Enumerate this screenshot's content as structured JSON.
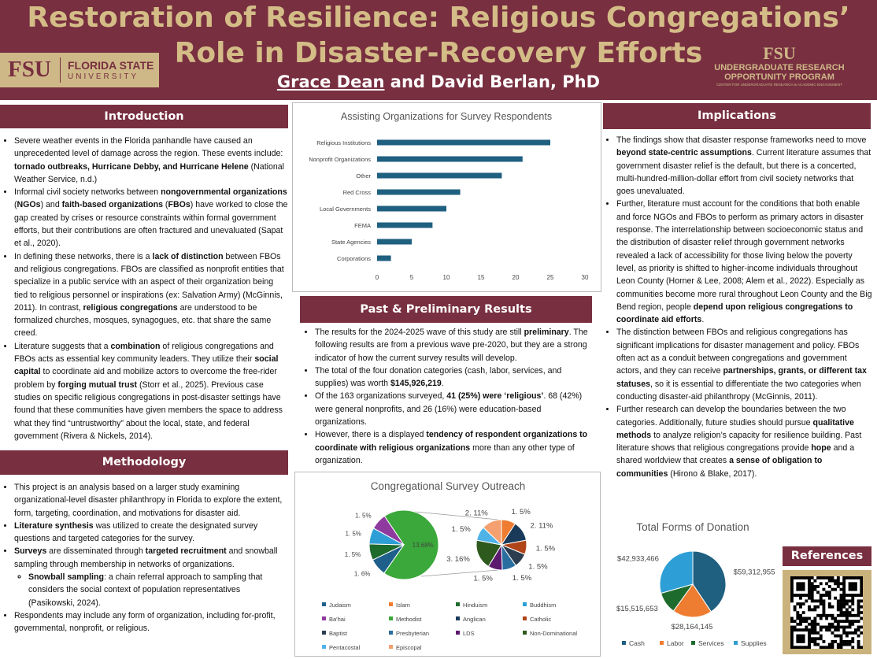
{
  "header": {
    "title": [
      "Restoration of Resilience: Religious Congregations’",
      "Role in Disaster-Recovery Efforts"
    ],
    "author": "Grace Dean",
    "coauthors": "and David Berlan, PhD",
    "logo_left": {
      "mark": "FSU",
      "name": "FLORIDA STATE",
      "sub": "UNIVERSITY"
    },
    "logo_right": {
      "mark": "FSU",
      "line1": "UNDERGRADUATE RESEARCH",
      "line2": "OPPORTUNITY PROGRAM",
      "line3": "CENTER FOR UNDERGRADUATE RESEARCH & ACADEMIC ENGAGEMENT"
    }
  },
  "introduction": {
    "heading": "Introduction",
    "bullets": [
      {
        "runs": [
          "Severe weather events in the Florida panhandle have caused an unprecedented level of damage across the region. These events include: ",
          {
            "bold": "tornado outbreaks, Hurricane Debby, and Hurricane Helene"
          },
          " (National Weather Service, n.d.)"
        ]
      },
      {
        "runs": [
          "Informal civil society networks between ",
          {
            "bold": "nongovernmental organizations"
          },
          " (",
          {
            "bold": "NGOs"
          },
          ") and ",
          {
            "bold": "faith-based organizations"
          },
          " (",
          {
            "bold": "FBOs"
          },
          ") have worked to close the gap created by crises or resource constraints within formal government efforts, but their contributions are often fractured and unevaluated (Sapat et al., 2020)."
        ]
      },
      {
        "runs": [
          "In defining these networks, there is a ",
          {
            "bold": "lack of distinction"
          },
          " between FBOs and religious congregations. FBOs are classified as nonprofit entities that specialize in a public service with an aspect of their organization being tied to religious personnel or inspirations (ex: Salvation Army) (McGinnis, 2011). In contrast, ",
          {
            "bold": "religious congregations"
          },
          " are understood to be formalized churches, mosques, synagogues, etc. that share the same creed."
        ]
      },
      {
        "runs": [
          "Literature suggests that a ",
          {
            "bold": "combination"
          },
          " of religious congregations and FBOs acts as essential key community leaders. They utilize their ",
          {
            "bold": "social capital"
          },
          " to coordinate aid and mobilize actors to overcome the free-rider problem by ",
          {
            "bold": "forging mutual trust"
          },
          " (Storr et al., 2025). Previous case studies on specific religious congregations in post-disaster settings have found that these communities have given members the space to address what they find “untrustworthy” about the local, state, and federal government (Rivera & Nickels, 2014)."
        ]
      }
    ]
  },
  "methodology": {
    "heading": "Methodology",
    "bullets": [
      {
        "runs": [
          "This project is an analysis based on a larger study examining organizational-level disaster philanthropy in Florida to explore the extent, form, targeting, coordination, and motivations for disaster aid."
        ]
      },
      {
        "runs": [
          {
            "bold": "Literature synthesis"
          },
          " was utilized to create the designated survey questions and targeted categories for the survey."
        ]
      },
      {
        "runs": [
          {
            "bold": "Surveys"
          },
          " are disseminated through ",
          {
            "bold": "targeted recruitment"
          },
          " and snowball sampling through membership in networks of organizations."
        ],
        "sub": [
          [
            {
              "bold": "Snowball sampling"
            },
            ": a chain referral approach to sampling that considers the social context of population representatives (Pasikowski, 2024)."
          ]
        ]
      },
      {
        "runs": [
          "Respondents may include any form of organization, including for-profit, governmental, nonprofit, or religious."
        ]
      }
    ]
  },
  "results": {
    "heading": "Past & Preliminary Results",
    "bullets": [
      {
        "runs": [
          "The results for the 2024-2025 wave of this study are still ",
          {
            "bold": "preliminary"
          },
          ". The following results are from a previous wave pre-2020, but they are a strong indicator of how the current survey results will develop."
        ]
      },
      {
        "runs": [
          "The total of the four donation categories (cash, labor, services, and supplies) was worth ",
          {
            "bold": "$145,926,219"
          },
          "."
        ]
      },
      {
        "runs": [
          "Of the 163 organizations surveyed, ",
          {
            "bold": "41 (25%) were ‘religious’"
          },
          ". 68 (42%) were general nonprofits, and 26 (16%) were education-based organizations."
        ]
      },
      {
        "runs": [
          "However, there is a displayed ",
          {
            "bold": "tendency of respondent organizations to coordinate with religious organizations"
          },
          " more than any other type of organization."
        ]
      }
    ]
  },
  "implications": {
    "heading": "Implications",
    "bullets": [
      {
        "runs": [
          "The findings show that disaster response frameworks need to move ",
          {
            "bold": "beyond state-centric assumptions"
          },
          ". Current literature assumes that government disaster relief is the default, but there is a concerted, multi-hundred-million-dollar effort from civil society networks that goes unevaluated."
        ]
      },
      {
        "runs": [
          "Further, literature must account for the conditions that both enable and force NGOs and FBOs to perform as primary actors in disaster response. The interrelationship between socioeconomic status and the distribution of disaster relief through government networks revealed a lack of accessibility for those living below the poverty level, as priority is shifted to higher-income individuals throughout Leon County (Horner & Lee, 2008; Alem et al., 2022). Especially as communities become more rural throughout Leon County and the Big Bend region, people ",
          {
            "bold": "depend upon religious congregations to coordinate aid efforts"
          },
          "."
        ]
      },
      {
        "runs": [
          "The distinction between FBOs and religious congregations has significant implications for disaster management and policy. FBOs often act as a conduit between congregations and government actors, and they can receive ",
          {
            "bold": "partnerships, grants, or different tax statuses"
          },
          ", so it is essential to differentiate the two categories when conducting disaster-aid philanthropy (McGinnis, 2011)."
        ]
      },
      {
        "runs": [
          "Further research can develop the boundaries between the two categories. Additionally, future studies should pursue ",
          {
            "bold": "qualitative methods"
          },
          " to analyze religion’s capacity for resilience building. Past literature shows that religious congregations provide ",
          {
            "bold": "hope"
          },
          " and a shared worldview that creates ",
          {
            "bold": "a sense of obligation to communities"
          },
          " (Hirono & Blake, 2017)."
        ]
      }
    ]
  },
  "references": {
    "heading": "References"
  },
  "chart_data": [
    {
      "type": "bar",
      "orientation": "horizontal",
      "title": "Assisting Organizations for Survey Respondents",
      "categories": [
        "Religious Institutions",
        "Nonprofit Organizations",
        "Other",
        "Red Cross",
        "Local Governments",
        "FEMA",
        "State Agencies",
        "Corporations"
      ],
      "values": [
        25,
        21,
        18,
        12,
        10,
        8,
        5,
        2
      ],
      "color": "#1f5f80",
      "grid": false,
      "xlim": [
        0,
        30
      ],
      "xticks": [
        0,
        5,
        10,
        15,
        20,
        25,
        30
      ]
    },
    {
      "type": "pie_of_pie",
      "title": "Congregational Survey Outreach",
      "categories": [
        "Judaism",
        "Islam",
        "Hinduism",
        "Buddhism",
        "Ba'hai",
        "Methodist",
        "Anglican",
        "Catholic",
        "Baptist",
        "Presbyterian",
        "LDS",
        "Non-Dominational",
        "Pentacostal",
        "Episcopal"
      ],
      "values": [
        1.6,
        1.5,
        1.5,
        1.5,
        1.5,
        13.68,
        2.11,
        1.5,
        1.5,
        1.5,
        1.5,
        3.16,
        1.5,
        2.11
      ],
      "value_labels": [
        "1. 6%",
        "1. 5%",
        "1. 5%",
        "1. 5%",
        "1. 5%",
        "13.68%",
        "2. 11%",
        "1. 5%",
        "1. 5%",
        "1. 5%",
        "1. 5%",
        "3. 16%",
        "1. 5%",
        "2. 11%"
      ],
      "colors": [
        "#1f5f8b",
        "#ee7d31",
        "#1e6b2e",
        "#2e9fd6",
        "#8e3a9e",
        "#3aa83a",
        "#1a3a5a",
        "#b0451a",
        "#2b3e50",
        "#2a6ea0",
        "#5c1a6e",
        "#2f5a1e",
        "#4fb3e8",
        "#f4a070"
      ],
      "secondary_categories": [
        "Islam",
        "Anglican",
        "Catholic",
        "Baptist",
        "Presbyterian",
        "LDS",
        "Non-Dominational",
        "Pentacostal",
        "Episcopal"
      ],
      "legend": "bottom"
    },
    {
      "type": "pie",
      "title": "Total Forms of Donation",
      "categories": [
        "Cash",
        "Labor",
        "Services",
        "Supplies"
      ],
      "values": [
        59312955,
        28164145,
        15515653,
        42933466
      ],
      "value_labels": [
        "$59,312,955",
        "$28,164,145",
        "$15,515,653",
        "$42,933,466"
      ],
      "colors": [
        "#1f5f80",
        "#ee7d31",
        "#1e6b2e",
        "#2e9fd6"
      ],
      "legend": "bottom"
    }
  ]
}
